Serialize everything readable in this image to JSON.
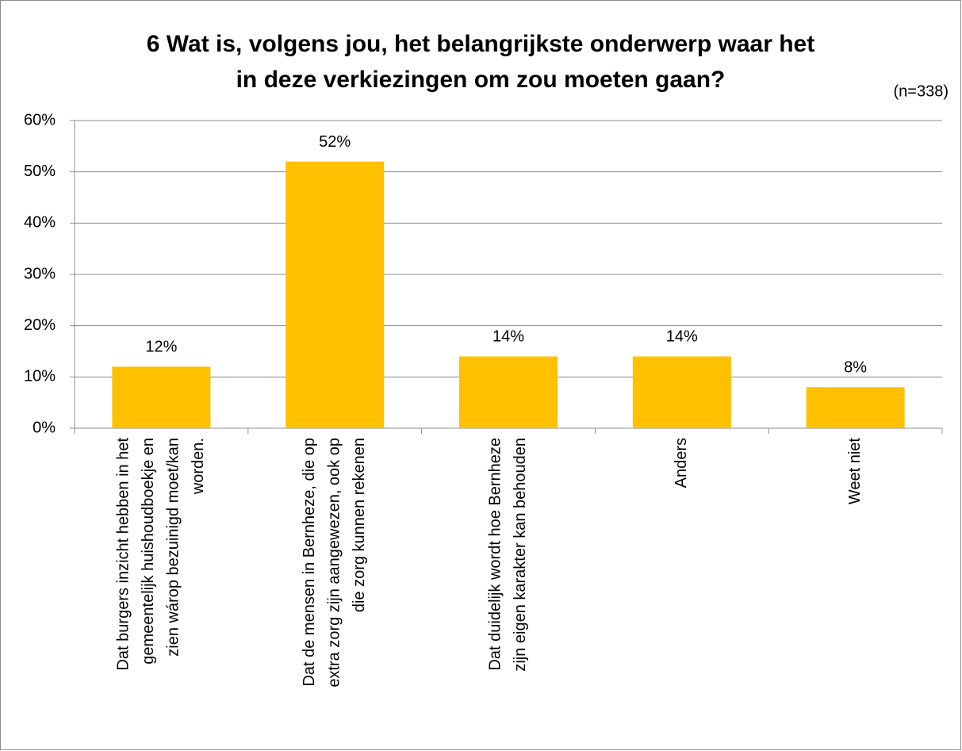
{
  "chart_data": {
    "type": "bar",
    "title": [
      "6 Wat is, volgens jou, het belangrijkste onderwerp waar het",
      "in deze verkiezingen om zou moeten gaan?"
    ],
    "subtitle": "(n=338)",
    "categories": [
      [
        "Dat burgers inzicht hebben in het",
        "gemeentelijk huishoudboekje en",
        "zien wárop bezuinigd moet/kan",
        "worden."
      ],
      [
        "Dat de mensen in Bernheze, die op",
        "extra zorg zijn aangewezen, ook op",
        "die zorg kunnen rekenen"
      ],
      [
        "Dat duidelijk wordt hoe Bernheze",
        "zijn eigen karakter kan behouden"
      ],
      [
        "Anders"
      ],
      [
        "Weet niet"
      ]
    ],
    "values": [
      12,
      52,
      14,
      14,
      8
    ],
    "value_labels": [
      "12%",
      "52%",
      "14%",
      "14%",
      "8%"
    ],
    "color": "#ffc000",
    "ylim": [
      0,
      60
    ],
    "yticks": [
      {
        "value": 0,
        "label": "0%"
      },
      {
        "value": 10,
        "label": "10%"
      },
      {
        "value": 20,
        "label": "20%"
      },
      {
        "value": 30,
        "label": "30%"
      },
      {
        "value": 40,
        "label": "40%"
      },
      {
        "value": 50,
        "label": "50%"
      },
      {
        "value": 60,
        "label": "60%"
      }
    ],
    "grid": true
  }
}
